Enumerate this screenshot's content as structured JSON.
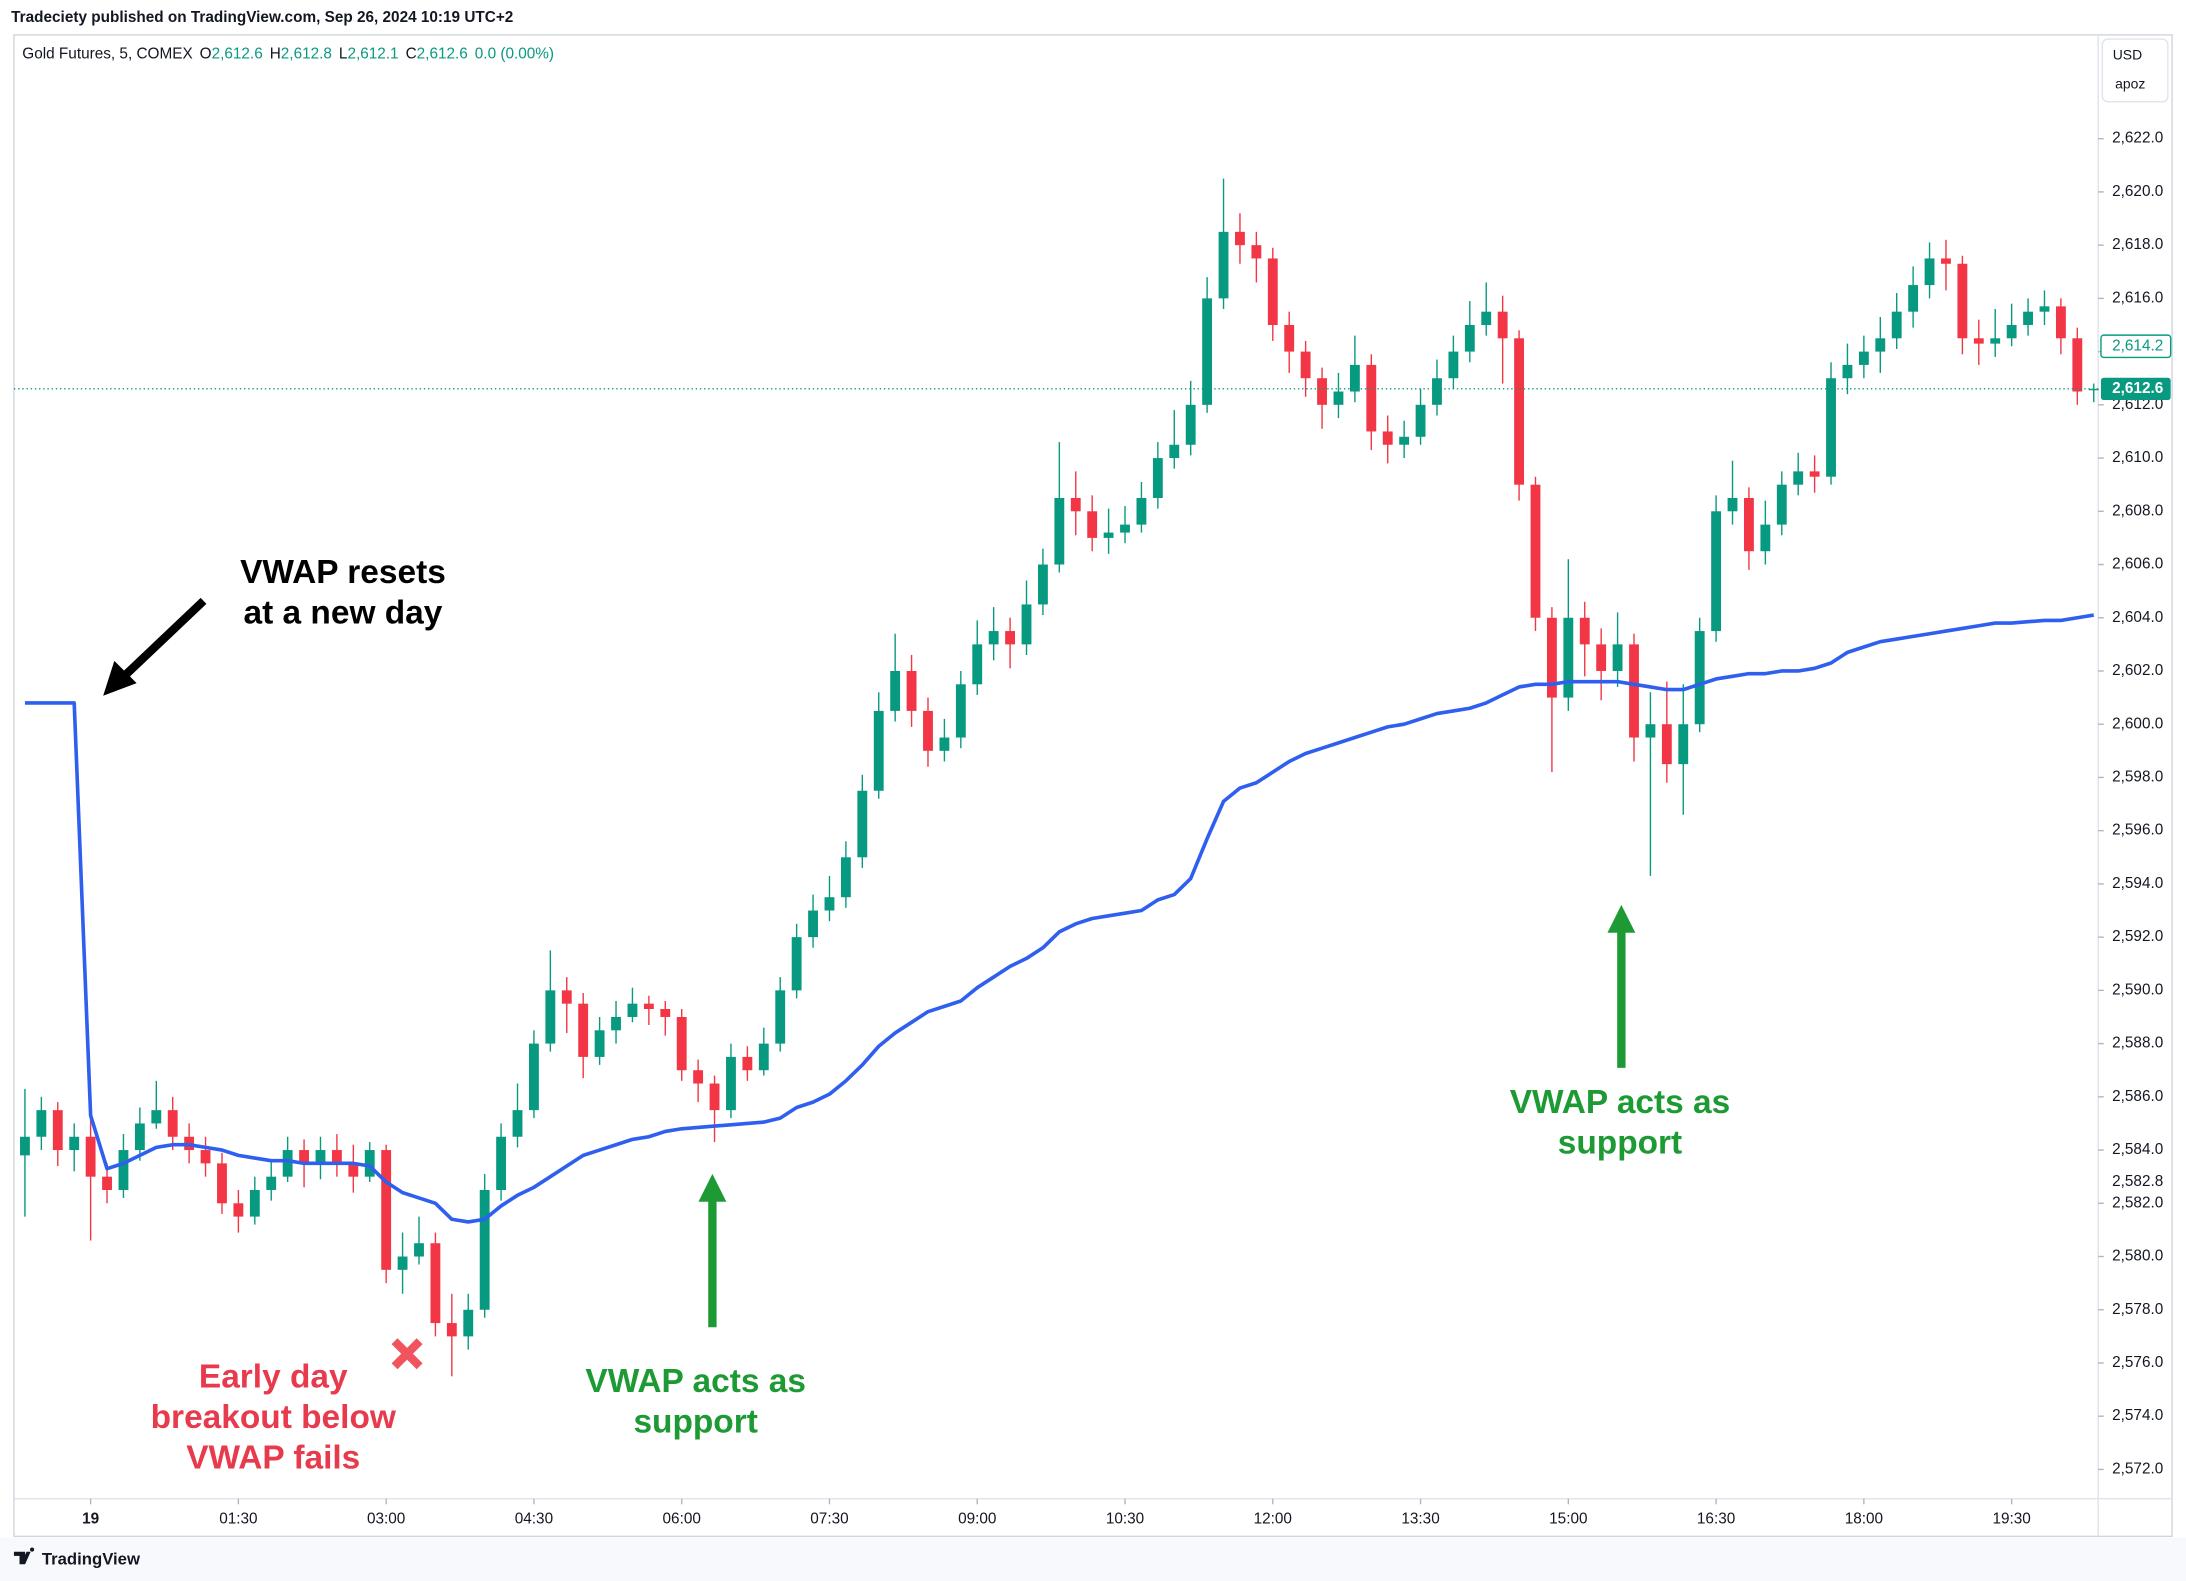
{
  "published": "Tradeciety published on TradingView.com, Sep 26, 2024 10:19 UTC+2",
  "footer": "TradingView",
  "currency_box": {
    "currency": "USD",
    "user": "apoz"
  },
  "chart_data": {
    "type": "candlestick",
    "title": "Gold Futures, 5, COMEX",
    "ohlc_legend": [
      {
        "key": "O",
        "value": "2,612.6"
      },
      {
        "key": "H",
        "value": "2,612.8"
      },
      {
        "key": "L",
        "value": "2,612.1"
      },
      {
        "key": "C",
        "value": "2,612.6"
      }
    ],
    "change": "0.0 (0.00%)",
    "up_color": "#089981",
    "down_color": "#f23645",
    "x": [
      -40,
      -30,
      -20,
      -10,
      0,
      10,
      20,
      30,
      40,
      50,
      60,
      70,
      80,
      90,
      100,
      110,
      120,
      130,
      140,
      150,
      160,
      170,
      180,
      190,
      200,
      210,
      220,
      230,
      240,
      250,
      260,
      270,
      280,
      290,
      300,
      310,
      320,
      330,
      340,
      350,
      360,
      370,
      380,
      390,
      400,
      410,
      420,
      430,
      440,
      450,
      460,
      470,
      480,
      490,
      500,
      510,
      520,
      530,
      540,
      550,
      560,
      570,
      580,
      590,
      600,
      610,
      620,
      630,
      640,
      650,
      660,
      670,
      680,
      690,
      700,
      710,
      720,
      730,
      740,
      750,
      760,
      770,
      780,
      790,
      800,
      810,
      820,
      830,
      840,
      850,
      860,
      870,
      880,
      890,
      900,
      910,
      920,
      930,
      940,
      950,
      960,
      970,
      980,
      990,
      1000,
      1010,
      1020,
      1030,
      1040,
      1050,
      1060,
      1070,
      1080,
      1090,
      1100,
      1110,
      1120,
      1130,
      1140,
      1150,
      1160,
      1170,
      1180,
      1190,
      1200,
      1210,
      1220
    ],
    "open": [
      2583.8,
      2584.5,
      2585.5,
      2584,
      2584.5,
      2583,
      2582.5,
      2584,
      2585,
      2585.5,
      2584.5,
      2584,
      2583.5,
      2582,
      2581.5,
      2582.5,
      2583,
      2584,
      2583.5,
      2584,
      2583.5,
      2583,
      2584,
      2579.5,
      2580,
      2580.5,
      2577.5,
      2577,
      2578,
      2582.5,
      2584.5,
      2585.5,
      2588,
      2590,
      2589.5,
      2587.5,
      2588.5,
      2589,
      2589.5,
      2589.3,
      2589,
      2587,
      2586.5,
      2585.5,
      2587.5,
      2587,
      2588,
      2590,
      2592,
      2593,
      2593.5,
      2595,
      2597.5,
      2600.5,
      2602,
      2600.5,
      2599,
      2599.5,
      2601.5,
      2603,
      2603.5,
      2603,
      2604.5,
      2606,
      2608.5,
      2608,
      2607,
      2607.2,
      2607.5,
      2608.5,
      2610,
      2610.5,
      2612,
      2616,
      2618.5,
      2618,
      2617.5,
      2615,
      2614,
      2613,
      2612,
      2612.5,
      2613.5,
      2611,
      2610.5,
      2610.8,
      2612,
      2613,
      2614,
      2615,
      2615.5,
      2614.5,
      2609,
      2604,
      2601,
      2604,
      2603,
      2602,
      2603,
      2599.5,
      2600,
      2598.5,
      2600,
      2603.5,
      2608,
      2608.5,
      2606.5,
      2607.5,
      2609,
      2609.5,
      2609.3,
      2613,
      2613.5,
      2614,
      2614.5,
      2615.5,
      2616.5,
      2617.5,
      2617.3,
      2614.5,
      2614.3,
      2614.5,
      2615,
      2615.5,
      2615.7,
      2614.5,
      2612.6
    ],
    "high": [
      2586.3,
      2586,
      2585.8,
      2585,
      2585.2,
      2583.5,
      2584.6,
      2585.6,
      2586.6,
      2586,
      2585,
      2584.5,
      2583.9,
      2582.5,
      2583,
      2583.6,
      2584.5,
      2584.4,
      2584.5,
      2584.6,
      2584.2,
      2584.3,
      2584.2,
      2580.9,
      2581.5,
      2580.9,
      2578.6,
      2578.6,
      2583.1,
      2585,
      2586.5,
      2588.5,
      2591.5,
      2590.5,
      2589.9,
      2589,
      2589.6,
      2590.1,
      2589.8,
      2589.6,
      2589.3,
      2587.4,
      2586.8,
      2588,
      2587.9,
      2588.6,
      2590.5,
      2592.5,
      2593.6,
      2594.3,
      2595.6,
      2598.1,
      2601.2,
      2603.4,
      2602.6,
      2601,
      2600.2,
      2602,
      2603.9,
      2604.4,
      2604,
      2605.4,
      2606.6,
      2610.6,
      2609.5,
      2608.6,
      2608.1,
      2608.2,
      2609.1,
      2610.6,
      2611.8,
      2612.9,
      2616.8,
      2620.5,
      2619.2,
      2618.5,
      2617.9,
      2615.5,
      2614.4,
      2613.4,
      2613.2,
      2614.6,
      2613.9,
      2611.6,
      2611.4,
      2612.6,
      2613.7,
      2614.6,
      2615.9,
      2616.6,
      2616.1,
      2614.8,
      2609.3,
      2604.4,
      2606.2,
      2604.6,
      2603.6,
      2604.2,
      2603.4,
      2601.2,
      2601.6,
      2601.5,
      2604,
      2608.6,
      2609.9,
      2608.9,
      2608.4,
      2609.5,
      2610.2,
      2610.1,
      2613.6,
      2614.3,
      2614.6,
      2615.3,
      2616.2,
      2617.2,
      2618.1,
      2618.2,
      2617.6,
      2615.2,
      2615.6,
      2615.8,
      2616,
      2616.3,
      2616,
      2614.9,
      2612.8
    ],
    "low": [
      2581.5,
      2584,
      2583.4,
      2583.2,
      2580.6,
      2582,
      2582.2,
      2583.6,
      2584.8,
      2584,
      2583.5,
      2583,
      2581.6,
      2580.9,
      2581.2,
      2582.1,
      2582.8,
      2582.6,
      2582.9,
      2583,
      2582.4,
      2582.8,
      2579,
      2578.6,
      2579.7,
      2577,
      2575.5,
      2576.5,
      2577.7,
      2582.1,
      2584.1,
      2585.2,
      2587.7,
      2588.4,
      2586.7,
      2587.2,
      2588,
      2588.8,
      2588.7,
      2588.3,
      2586.6,
      2585.8,
      2584.3,
      2585.2,
      2586.6,
      2586.8,
      2587.7,
      2589.7,
      2591.6,
      2592.6,
      2593.1,
      2594.6,
      2597.2,
      2600.1,
      2599.9,
      2598.4,
      2598.6,
      2599.1,
      2601.1,
      2602.4,
      2602.1,
      2602.6,
      2604.1,
      2605.7,
      2607.1,
      2606.5,
      2606.4,
      2606.8,
      2607.2,
      2608.1,
      2609.6,
      2610.1,
      2611.7,
      2615.6,
      2617.3,
      2616.6,
      2614.4,
      2613.2,
      2612.3,
      2611.1,
      2611.5,
      2612.1,
      2610.3,
      2609.8,
      2610,
      2610.5,
      2611.6,
      2612.6,
      2613.6,
      2614.6,
      2612.8,
      2608.4,
      2603.5,
      2598.2,
      2600.5,
      2601.8,
      2600.9,
      2601.4,
      2598.6,
      2594.3,
      2597.8,
      2596.6,
      2599.7,
      2603.1,
      2607.5,
      2605.8,
      2606,
      2607.1,
      2608.6,
      2608.7,
      2609,
      2612.4,
      2613,
      2613.2,
      2614.1,
      2614.9,
      2616,
      2616.3,
      2613.9,
      2613.5,
      2613.8,
      2614.2,
      2614.6,
      2615,
      2613.9,
      2612,
      2612.1
    ],
    "close": [
      2584.5,
      2585.5,
      2584,
      2584.5,
      2583,
      2582.5,
      2584,
      2585,
      2585.5,
      2584.5,
      2584,
      2583.5,
      2582,
      2581.5,
      2582.5,
      2583,
      2584,
      2583.5,
      2584,
      2583.5,
      2583,
      2584,
      2579.5,
      2580,
      2580.5,
      2577.5,
      2577,
      2578,
      2582.5,
      2584.5,
      2585.5,
      2588,
      2590,
      2589.5,
      2587.5,
      2588.5,
      2589,
      2589.5,
      2589.3,
      2589,
      2587,
      2586.5,
      2585.5,
      2587.5,
      2587,
      2588,
      2590,
      2592,
      2593,
      2593.5,
      2595,
      2597.5,
      2600.5,
      2602,
      2600.5,
      2599,
      2599.5,
      2601.5,
      2603,
      2603.5,
      2603,
      2604.5,
      2606,
      2608.5,
      2608,
      2607,
      2607.2,
      2607.5,
      2608.5,
      2610,
      2610.5,
      2612,
      2616,
      2618.5,
      2618,
      2617.5,
      2615,
      2614,
      2613,
      2612,
      2612.5,
      2613.5,
      2611,
      2610.5,
      2610.8,
      2612,
      2613,
      2614,
      2615,
      2615.5,
      2614.5,
      2609,
      2604,
      2601,
      2604,
      2603,
      2602,
      2603,
      2599.5,
      2600,
      2598.5,
      2600,
      2603.5,
      2608,
      2608.5,
      2606.5,
      2607.5,
      2609,
      2609.5,
      2609.3,
      2613,
      2613.5,
      2614,
      2614.5,
      2615.5,
      2616.5,
      2617.5,
      2617.3,
      2614.5,
      2614.3,
      2614.5,
      2615,
      2615.5,
      2615.7,
      2614.5,
      2612.5,
      2612.6
    ],
    "vwap": {
      "color": "#2f5fef",
      "values": [
        2600.8,
        2600.8,
        2600.8,
        2600.8,
        2585.3,
        2583.3,
        2583.5,
        2583.8,
        2584.1,
        2584.2,
        2584.2,
        2584.1,
        2584,
        2583.8,
        2583.7,
        2583.6,
        2583.6,
        2583.5,
        2583.5,
        2583.5,
        2583.5,
        2583.4,
        2582.8,
        2582.4,
        2582.2,
        2582,
        2581.4,
        2581.3,
        2581.4,
        2581.9,
        2582.3,
        2582.6,
        2583,
        2583.4,
        2583.8,
        2584,
        2584.2,
        2584.4,
        2584.5,
        2584.7,
        2584.8,
        2584.85,
        2584.9,
        2584.95,
        2585,
        2585.05,
        2585.2,
        2585.6,
        2585.8,
        2586.1,
        2586.6,
        2587.2,
        2587.9,
        2588.4,
        2588.8,
        2589.2,
        2589.4,
        2589.6,
        2590.1,
        2590.5,
        2590.9,
        2591.2,
        2591.6,
        2592.2,
        2592.5,
        2592.7,
        2592.8,
        2592.9,
        2593,
        2593.4,
        2593.6,
        2594.2,
        2595.7,
        2597.1,
        2597.6,
        2597.8,
        2598.2,
        2598.6,
        2598.9,
        2599.1,
        2599.3,
        2599.5,
        2599.7,
        2599.9,
        2600,
        2600.2,
        2600.4,
        2600.5,
        2600.6,
        2600.8,
        2601.1,
        2601.4,
        2601.5,
        2601.5,
        2601.6,
        2601.6,
        2601.6,
        2601.6,
        2601.5,
        2601.4,
        2601.3,
        2601.3,
        2601.5,
        2601.7,
        2601.8,
        2601.9,
        2601.9,
        2602,
        2602,
        2602.1,
        2602.3,
        2602.7,
        2602.9,
        2603.1,
        2603.2,
        2603.3,
        2603.4,
        2603.5,
        2603.6,
        2603.7,
        2603.8,
        2603.8,
        2603.85,
        2603.9,
        2603.9,
        2604,
        2604.1
      ]
    },
    "xlim": [
      -46.7,
      1222.7
    ],
    "xticks": [
      {
        "value": 0,
        "label": "19"
      },
      {
        "value": 90,
        "label": "01:30"
      },
      {
        "value": 180,
        "label": "03:00"
      },
      {
        "value": 270,
        "label": "04:30"
      },
      {
        "value": 360,
        "label": "06:00"
      },
      {
        "value": 450,
        "label": "07:30"
      },
      {
        "value": 540,
        "label": "09:00"
      },
      {
        "value": 630,
        "label": "10:30"
      },
      {
        "value": 720,
        "label": "12:00"
      },
      {
        "value": 810,
        "label": "13:30"
      },
      {
        "value": 900,
        "label": "15:00"
      },
      {
        "value": 990,
        "label": "16:30"
      },
      {
        "value": 1080,
        "label": "18:00"
      },
      {
        "value": 1170,
        "label": "19:30"
      }
    ],
    "ylim": [
      2570.9,
      2625.9
    ],
    "yticks": [
      {
        "value": 2572,
        "label": "2,572.0"
      },
      {
        "value": 2574,
        "label": "2,574.0"
      },
      {
        "value": 2576,
        "label": "2,576.0"
      },
      {
        "value": 2578,
        "label": "2,578.0"
      },
      {
        "value": 2580,
        "label": "2,580.0"
      },
      {
        "value": 2582,
        "label": "2,582.0"
      },
      {
        "value": 2584,
        "label": "2,584.0"
      },
      {
        "value": 2586,
        "label": "2,586.0"
      },
      {
        "value": 2588,
        "label": "2,588.0"
      },
      {
        "value": 2590,
        "label": "2,590.0"
      },
      {
        "value": 2592,
        "label": "2,592.0"
      },
      {
        "value": 2594,
        "label": "2,594.0"
      },
      {
        "value": 2596,
        "label": "2,596.0"
      },
      {
        "value": 2598,
        "label": "2,598.0"
      },
      {
        "value": 2600,
        "label": "2,600.0"
      },
      {
        "value": 2602,
        "label": "2,602.0"
      },
      {
        "value": 2604,
        "label": "2,604.0"
      },
      {
        "value": 2606,
        "label": "2,606.0"
      },
      {
        "value": 2608,
        "label": "2,608.0"
      },
      {
        "value": 2610,
        "label": "2,610.0"
      },
      {
        "value": 2612,
        "label": "2,612.0"
      },
      {
        "value": 2614,
        "label": "2,614.0"
      },
      {
        "value": 2616,
        "label": "2,616.0"
      },
      {
        "value": 2618,
        "label": "2,618.0"
      },
      {
        "value": 2620,
        "label": "2,620.0"
      },
      {
        "value": 2622,
        "label": "2,622.0"
      }
    ],
    "price_labels": [
      {
        "value": 2614.2,
        "label": "2,614.2",
        "style": "outline"
      },
      {
        "value": 2612.6,
        "label": "2,612.6",
        "style": "filled"
      },
      {
        "value": 2582.8,
        "label": "2,582.8",
        "style": "plain"
      }
    ],
    "grid": false,
    "annotations": [
      {
        "lines": [
          "VWAP resets",
          "at a new day"
        ],
        "color": "#000000"
      },
      {
        "lines": [
          "Early day",
          "breakout below",
          "VWAP fails"
        ],
        "color": "#e83a4d"
      },
      {
        "lines": [
          "VWAP acts as",
          "support"
        ],
        "color": "#1e9a35"
      },
      {
        "lines": [
          "VWAP acts as",
          "support"
        ],
        "color": "#1e9a35"
      }
    ]
  }
}
